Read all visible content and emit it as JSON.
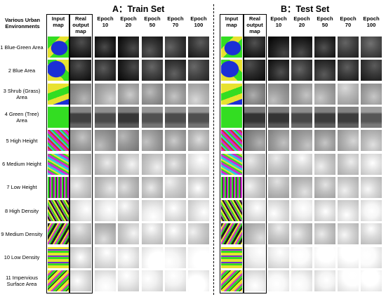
{
  "figure": {
    "train_title": "A：Train Set",
    "test_title": "B：Test Set",
    "env_header": "Various Urban Environments",
    "columns": [
      "Input map",
      "Real output map",
      "Epoch 10",
      "Epoch 20",
      "Epoch 50",
      "Epoch 70",
      "Epoch 100"
    ],
    "rows": [
      {
        "label": "1 Blue-Green Area",
        "input": "bluegreen",
        "output": "dark"
      },
      {
        "label": "2 Blue Area",
        "input": "blue",
        "output": "dark"
      },
      {
        "label": "3 Shrub (Grass) Area",
        "input": "shrub",
        "output": "mid"
      },
      {
        "label": "4 Green (Tree) Area",
        "input": "green",
        "output": "darkband"
      },
      {
        "label": "5 High Height",
        "input": "highheight",
        "output": "mid"
      },
      {
        "label": "6 Medium Height",
        "input": "medheight",
        "output": "light"
      },
      {
        "label": "7 Low Height",
        "input": "lowheight",
        "output": "light"
      },
      {
        "label": "8 High Density",
        "input": "highdensity",
        "output": "verylight"
      },
      {
        "label": "9 Medium Density",
        "input": "meddensity",
        "output": "light"
      },
      {
        "label": "10 Low Density",
        "input": "lowdensity",
        "output": "white"
      },
      {
        "label": "11 Impervious Surface Area",
        "input": "impervious",
        "output": "white"
      }
    ]
  },
  "colors": {
    "blue": "#1c2fd6",
    "green": "#33dd22",
    "yellow": "#e8e230",
    "magenta": "#d02ad0",
    "red": "#d82a2a",
    "cyan": "#32c8e0",
    "dark": "#1e1e1e"
  }
}
